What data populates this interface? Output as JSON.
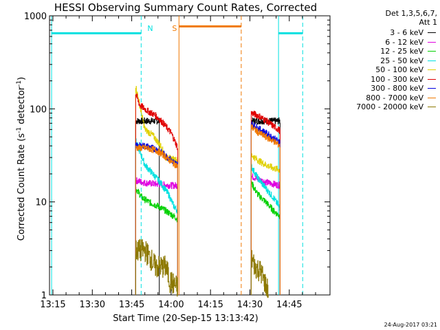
{
  "chart_data": {
    "type": "line",
    "title": "HESSI Observing Summary Count Rates, Corrected",
    "xlabel": "Start Time (20-Sep-15 13:13:42)",
    "ylabel": "Corrected Count Rate (s-1 detector-1)",
    "ylabel_parts": {
      "main": "Corrected Count Rate (s",
      "exp1": "-1",
      "mid": " detector",
      "exp2": "-1",
      "end": ")"
    },
    "x_ticks": [
      "13:15",
      "13:30",
      "13:45",
      "14:00",
      "14:15",
      "14:30",
      "14:45"
    ],
    "x_tick_minutes": [
      795,
      810,
      825,
      840,
      855,
      870,
      885
    ],
    "xlim_minutes": [
      793.7,
      900.5
    ],
    "y_scale": "log",
    "ylim": [
      1,
      1000
    ],
    "y_ticks": [
      "1",
      "10",
      "100",
      "1000"
    ],
    "legend_header": [
      "Det 1,3,5,6,7,",
      "Att 1"
    ],
    "legend_position": "top-right",
    "series": [
      {
        "name": "3 - 6 keV",
        "color": "#000000",
        "segments": [
          [
            [
              826.5,
              74
            ],
            [
              835.5,
              74
            ]
          ],
          [
            [
              870.5,
              74
            ],
            [
              881.5,
              74
            ]
          ]
        ]
      },
      {
        "name": "6 - 12 keV",
        "color": "#e000e0",
        "segments": [
          [
            [
              826.5,
              17
            ],
            [
              830,
              16
            ],
            [
              835,
              15.5
            ],
            [
              840,
              15
            ],
            [
              842.5,
              15
            ]
          ],
          [
            [
              870.5,
              19
            ],
            [
              873,
              17.5
            ],
            [
              877,
              16
            ],
            [
              881.5,
              15
            ]
          ]
        ]
      },
      {
        "name": "12 - 25 keV",
        "color": "#00d000",
        "segments": [
          [
            [
              826.5,
              14
            ],
            [
              829,
              11
            ],
            [
              832,
              9.8
            ],
            [
              835,
              9
            ],
            [
              838,
              8
            ],
            [
              841,
              7
            ],
            [
              842.5,
              6.5
            ]
          ],
          [
            [
              870.5,
              16
            ],
            [
              873,
              12
            ],
            [
              876,
              10
            ],
            [
              879,
              8
            ],
            [
              881.5,
              7
            ]
          ]
        ]
      },
      {
        "name": "25 - 50 keV",
        "color": "#00e0e0",
        "segments": [
          [
            [
              826.5,
              45
            ],
            [
              828,
              35
            ],
            [
              830,
              25
            ],
            [
              833,
              20
            ],
            [
              836,
              16
            ],
            [
              839,
              12
            ],
            [
              841,
              9
            ],
            [
              842.5,
              8
            ]
          ],
          [
            [
              870.5,
              24
            ],
            [
              873,
              18
            ],
            [
              876,
              14
            ],
            [
              879,
              11
            ],
            [
              881.5,
              8.5
            ]
          ]
        ]
      },
      {
        "name": "50 - 100 keV",
        "color": "#e0d000",
        "segments": [
          [
            [
              826.5,
              175
            ],
            [
              828,
              110
            ],
            [
              830,
              60
            ],
            [
              833,
              52
            ],
            [
              836,
              40
            ],
            [
              838,
              30
            ],
            [
              842.5,
              28
            ]
          ],
          [
            [
              870.5,
              32
            ],
            [
              873,
              28
            ],
            [
              876,
              25
            ],
            [
              879,
              23
            ],
            [
              881.5,
              22
            ]
          ]
        ]
      },
      {
        "name": "100 - 300 keV",
        "color": "#e00000",
        "segments": [
          [
            [
              826.5,
              145
            ],
            [
              828,
              110
            ],
            [
              831,
              95
            ],
            [
              834,
              85
            ],
            [
              837,
              70
            ],
            [
              840,
              55
            ],
            [
              842.5,
              38
            ]
          ],
          [
            [
              870.5,
              90
            ],
            [
              873,
              85
            ],
            [
              876,
              75
            ],
            [
              879,
              65
            ],
            [
              881.5,
              58
            ]
          ]
        ]
      },
      {
        "name": "300 - 800 keV",
        "color": "#0000e0",
        "segments": [
          [
            [
              826.5,
              40
            ],
            [
              830,
              40
            ],
            [
              834,
              37
            ],
            [
              837,
              33
            ],
            [
              840,
              28
            ],
            [
              842.5,
              25
            ]
          ],
          [
            [
              870.5,
              70
            ],
            [
              873,
              62
            ],
            [
              876,
              55
            ],
            [
              879,
              48
            ],
            [
              881.5,
              44
            ]
          ]
        ]
      },
      {
        "name": "800 - 7000 keV",
        "color": "#f07800",
        "segments": [
          [
            [
              826.5,
              38
            ],
            [
              830,
              38
            ],
            [
              834,
              36
            ],
            [
              837,
              32
            ],
            [
              840,
              27
            ],
            [
              842.5,
              24
            ]
          ],
          [
            [
              870.5,
              64
            ],
            [
              873,
              56
            ],
            [
              876,
              50
            ],
            [
              879,
              45
            ],
            [
              881.5,
              40
            ]
          ]
        ]
      },
      {
        "name": "7000 - 20000 keV",
        "color": "#8c7800",
        "segments": [
          [
            [
              826.5,
              3
            ],
            [
              830,
              3
            ],
            [
              832,
              2.5
            ],
            [
              834,
              2
            ],
            [
              838,
              2
            ],
            [
              839.5,
              1.4
            ],
            [
              842.5,
              1.2
            ]
          ],
          [
            [
              870.5,
              2.5
            ],
            [
              872,
              2
            ],
            [
              874,
              1.8
            ],
            [
              875.5,
              1.4
            ],
            [
              877,
              1.1
            ]
          ]
        ]
      }
    ],
    "markers": [
      {
        "label": "N",
        "color": "#00e0e0",
        "bars": [
          [
            794.5,
            828.6
          ],
          [
            880.9,
            890.1
          ]
        ],
        "solid_lines": [
          794.5,
          880.9
        ],
        "dashed_lines": [
          828.6,
          890.1
        ]
      },
      {
        "label": "S",
        "color": "#f07800",
        "bars": [
          [
            843.0,
            866.7
          ]
        ],
        "solid_lines": [
          843.0
        ],
        "dashed_lines": [
          866.7
        ]
      }
    ],
    "bar_level": 650,
    "s_bar_level": 770,
    "grid": false
  },
  "footer": "24-Aug-2017 03:21"
}
